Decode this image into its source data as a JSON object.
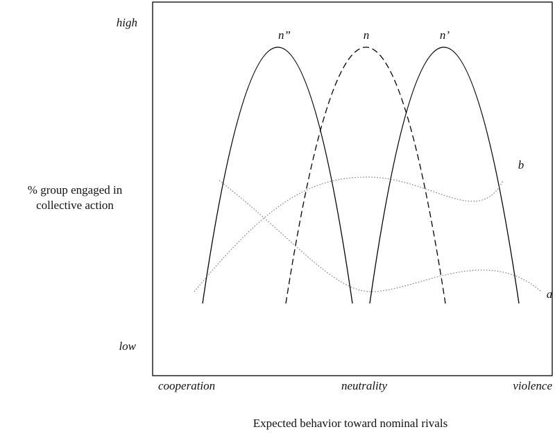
{
  "y_axis": {
    "high": "high",
    "low": "low",
    "label": [
      "% group engaged in",
      "collective action"
    ]
  },
  "x_axis": {
    "labels": [
      "cooperation",
      "neutrality",
      "violence"
    ],
    "title": "Expected behavior toward nominal rivals"
  },
  "curves": [
    {
      "label": "n”"
    },
    {
      "label": "n"
    },
    {
      "label": "n’"
    },
    {
      "label": "b"
    },
    {
      "label": "a"
    }
  ]
}
